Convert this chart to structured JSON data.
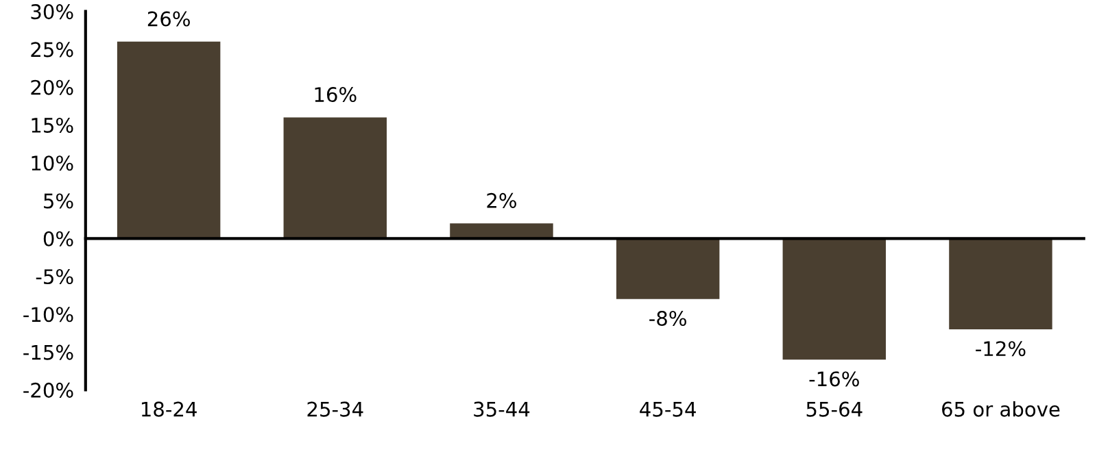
{
  "chart_data": {
    "type": "bar",
    "categories": [
      "18-24",
      "25-34",
      "35-44",
      "45-54",
      "55-64",
      "65 or above"
    ],
    "values": [
      26,
      16,
      2,
      -8,
      -16,
      -12
    ],
    "value_labels": [
      "26%",
      "16%",
      "2%",
      "-8%",
      "-16%",
      "-12%"
    ],
    "color": "#4a3f30",
    "ylim": [
      -20,
      30
    ],
    "yticks": [
      {
        "value": -20,
        "label": "-20%"
      },
      {
        "value": -15,
        "label": "-15%"
      },
      {
        "value": -10,
        "label": "-10%"
      },
      {
        "value": -5,
        "label": "-5%"
      },
      {
        "value": 0,
        "label": "0%"
      },
      {
        "value": 5,
        "label": "5%"
      },
      {
        "value": 10,
        "label": "10%"
      },
      {
        "value": 15,
        "label": "15%"
      },
      {
        "value": 20,
        "label": "20%"
      },
      {
        "value": 25,
        "label": "25%"
      },
      {
        "value": 30,
        "label": "30%"
      }
    ],
    "legend": false
  }
}
